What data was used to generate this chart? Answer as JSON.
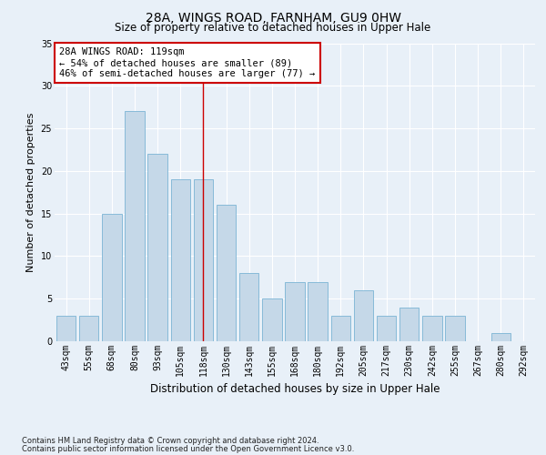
{
  "title": "28A, WINGS ROAD, FARNHAM, GU9 0HW",
  "subtitle": "Size of property relative to detached houses in Upper Hale",
  "xlabel": "Distribution of detached houses by size in Upper Hale",
  "ylabel": "Number of detached properties",
  "footnote1": "Contains HM Land Registry data © Crown copyright and database right 2024.",
  "footnote2": "Contains public sector information licensed under the Open Government Licence v3.0.",
  "categories": [
    "43sqm",
    "55sqm",
    "68sqm",
    "80sqm",
    "93sqm",
    "105sqm",
    "118sqm",
    "130sqm",
    "143sqm",
    "155sqm",
    "168sqm",
    "180sqm",
    "192sqm",
    "205sqm",
    "217sqm",
    "230sqm",
    "242sqm",
    "255sqm",
    "267sqm",
    "280sqm",
    "292sqm"
  ],
  "values": [
    3,
    3,
    15,
    27,
    22,
    19,
    19,
    16,
    8,
    5,
    7,
    7,
    3,
    6,
    3,
    4,
    3,
    3,
    0,
    1,
    0
  ],
  "bar_color": "#c5d8e8",
  "bar_edge_color": "#7ab4d4",
  "background_color": "#e8f0f8",
  "gridcolor": "#ffffff",
  "annotation_text_line1": "28A WINGS ROAD: 119sqm",
  "annotation_text_line2": "← 54% of detached houses are smaller (89)",
  "annotation_text_line3": "46% of semi-detached houses are larger (77) →",
  "annotation_box_color": "#ffffff",
  "annotation_box_edge": "#cc0000",
  "vline_color": "#cc0000",
  "ylim": [
    0,
    35
  ],
  "yticks": [
    0,
    5,
    10,
    15,
    20,
    25,
    30,
    35
  ],
  "title_fontsize": 10,
  "subtitle_fontsize": 8.5,
  "ylabel_fontsize": 8,
  "xlabel_fontsize": 8.5,
  "tick_fontsize": 7,
  "footnote_fontsize": 6,
  "annotation_fontsize": 7.5
}
